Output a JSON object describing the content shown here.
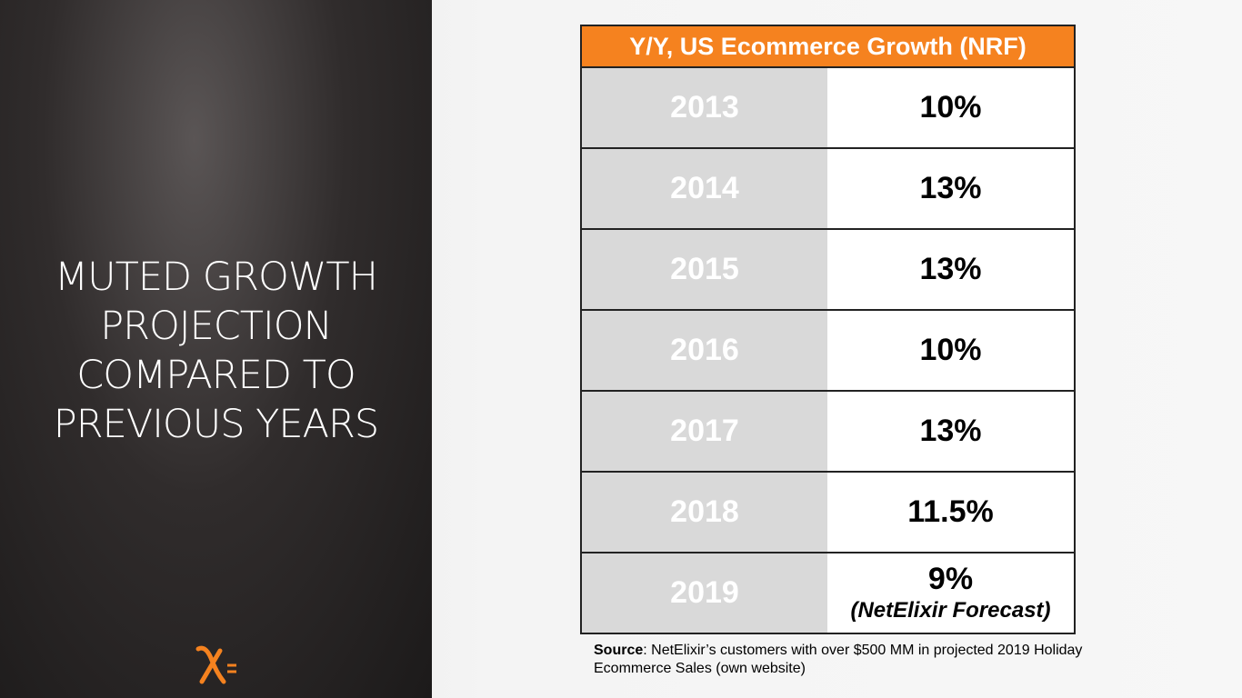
{
  "heading": {
    "lines": [
      "MUTED GROWTH",
      "PROJECTION",
      "COMPARED TO",
      "PREVIOUS YEARS"
    ]
  },
  "table": {
    "title": "Y/Y, US Ecommerce Growth (NRF)",
    "rows": [
      [
        "2013",
        "10%"
      ],
      [
        "2014",
        "13%"
      ],
      [
        "2015",
        "13%"
      ],
      [
        "2016",
        "10%"
      ],
      [
        "2017",
        "13%"
      ],
      [
        "2018",
        "11.5%"
      ],
      [
        "2019",
        "9%"
      ]
    ],
    "note": "(NetElixir Forecast)"
  },
  "source": {
    "label": "Source",
    "text": ": NetElixir’s customers with over $500 MM in projected 2019 Holiday Ecommerce Sales (own website)"
  }
}
